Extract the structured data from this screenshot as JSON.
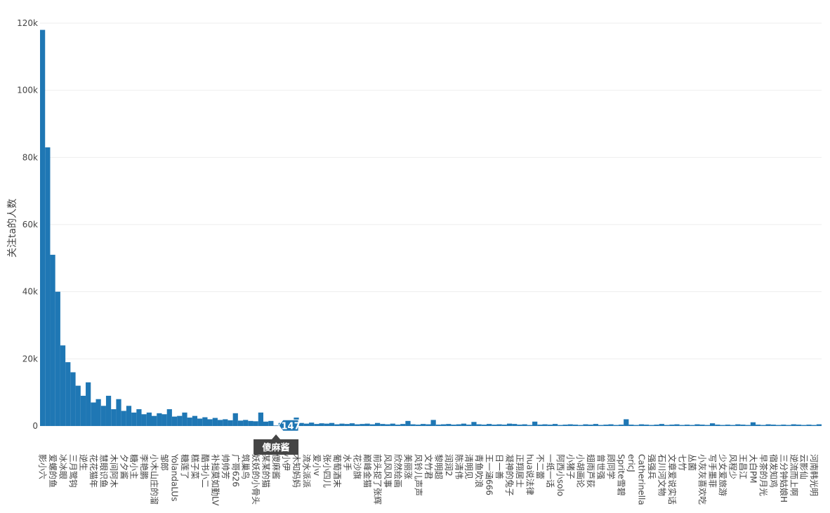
{
  "chart_data": {
    "type": "bar",
    "y_label": "关注ta的人数",
    "color": "#1f77b4",
    "grid": true,
    "ylim": [
      0,
      120000
    ],
    "yticks": [
      0,
      {
        "value": 20000,
        "label": "20k"
      },
      {
        "value": 40000,
        "label": "40k"
      },
      {
        "value": 60000,
        "label": "60k"
      },
      {
        "value": 80000,
        "label": "80k"
      },
      {
        "value": 100000,
        "label": "100k"
      },
      {
        "value": 120000,
        "label": "120k"
      }
    ],
    "categories": [
      "影小六",
      null,
      "爱螺的鱼",
      null,
      "冰冰眼",
      null,
      "三月鹭钩",
      null,
      "逆生",
      null,
      "花花猫年",
      null,
      "慧眼识鱼",
      null,
      "木间阿木",
      null,
      "夕夕酱",
      null,
      "糖小主",
      null,
      "李艳鹏",
      null,
      "小木山庄的溜",
      null,
      "邹郎",
      null,
      "YolandaLUs",
      null,
      "糖莲了",
      null,
      "糕子菜",
      null,
      "酷书小二",
      null,
      "补拙莫如勤LV",
      null,
      "帅帅芳",
      null,
      "广哥626",
      null,
      "筑巢鸟",
      null,
      "妖妖的小骨头",
      null,
      "某某的猫",
      null,
      "傻麻酱",
      null,
      "小伊",
      null,
      "木知妈妈",
      null,
      "流水派派",
      null,
      "爱小v",
      null,
      "张小四儿",
      null,
      "葡萄酒末",
      null,
      "水手",
      null,
      "花沙旗",
      null,
      "巅峰金猫",
      null,
      "前头捉了张辉",
      null,
      "风风风事",
      null,
      "欣然绘画",
      null,
      "美丽涨",
      null,
      "风铃儿声声",
      null,
      "文竹君",
      null,
      "黎明超",
      null,
      "润润2",
      null,
      "陈清伟",
      null,
      "清明见",
      null,
      "青鱼吹浪",
      null,
      "王一涵666",
      null,
      "日一善",
      null,
      "凝神的兔子",
      null,
      "正翔居士",
      null,
      "hua说法律",
      null,
      "不二蕾",
      null,
      "一纸一话",
      null,
      "阿西小solo",
      null,
      "小猪子",
      null,
      "小胡画论",
      null,
      "翅雨芦荻",
      null,
      "曾世强",
      null,
      "顾同学",
      null,
      "Sprite雪碧",
      null,
      "ericJ",
      null,
      "Catherinella",
      null,
      "强强兵",
      null,
      "石川河文物",
      null,
      "文章爱说实话",
      null,
      "七竹",
      null,
      "丛菌",
      null,
      "小灰灰喜欢吃",
      null,
      "写手墨菲",
      null,
      "少女爱旅游",
      null,
      "风程少",
      null,
      "王昌江",
      null,
      "大白PM",
      null,
      "早茶的月光",
      null,
      "宿发知鸡",
      null,
      "三分钟姑娘H",
      null,
      "逆流而上啊",
      null,
      "云影仙",
      null,
      "河南韩光明",
      null
    ],
    "values": [
      118000,
      83000,
      51000,
      40000,
      24000,
      19000,
      16000,
      12000,
      9000,
      13000,
      7000,
      8000,
      6000,
      9000,
      5000,
      8000,
      4500,
      6000,
      4000,
      5000,
      3500,
      4000,
      3000,
      3800,
      3500,
      5000,
      2800,
      3000,
      4000,
      2500,
      3000,
      2200,
      2600,
      2000,
      2400,
      1800,
      2000,
      1700,
      3800,
      1600,
      1800,
      1500,
      1400,
      4000,
      1300,
      1500,
      147,
      900,
      1200,
      800,
      2500,
      900,
      700,
      1000,
      600,
      800,
      700,
      900,
      500,
      700,
      600,
      800,
      500,
      600,
      700,
      500,
      900,
      600,
      500,
      700,
      400,
      600,
      1500,
      500,
      400,
      600,
      500,
      1800,
      400,
      500,
      600,
      400,
      500,
      700,
      400,
      1200,
      500,
      400,
      600,
      400,
      500,
      400,
      700,
      600,
      400,
      500,
      300,
      1300,
      400,
      500,
      400,
      600,
      300,
      400,
      500,
      400,
      300,
      500,
      400,
      600,
      300,
      400,
      500,
      300,
      400,
      2000,
      400,
      300,
      500,
      400,
      300,
      400,
      600,
      300,
      400,
      500,
      300,
      400,
      300,
      500,
      400,
      300,
      800,
      400,
      300,
      400,
      300,
      500,
      400,
      300,
      1100,
      400,
      300,
      500,
      400,
      300,
      400,
      300,
      500,
      400,
      300,
      400,
      300,
      500
    ],
    "hover_index": 46
  }
}
